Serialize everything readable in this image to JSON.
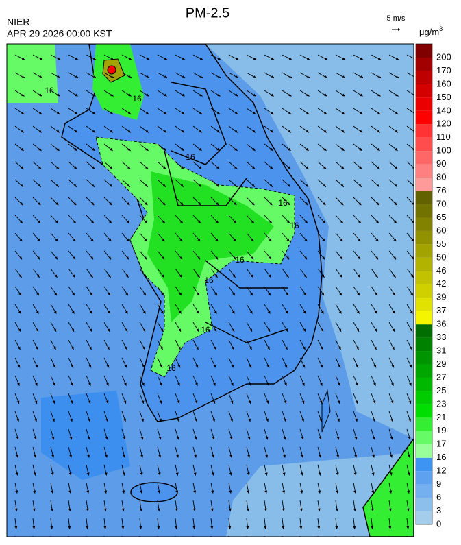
{
  "header": {
    "title": "PM-2.5",
    "agency": "NIER",
    "datetime": "APR 29 2026 00:00 KST",
    "wind_scale": "5 m/s",
    "unit": "μg/m",
    "unit_sup": "3"
  },
  "colorbar": {
    "labels": [
      0,
      3,
      6,
      9,
      12,
      16,
      17,
      19,
      21,
      23,
      25,
      27,
      29,
      31,
      33,
      36,
      37,
      39,
      42,
      46,
      50,
      55,
      60,
      65,
      70,
      76,
      80,
      90,
      100,
      110,
      120,
      140,
      150,
      160,
      170,
      200
    ],
    "colors": [
      "#a3cdea",
      "#8cbfec",
      "#74afef",
      "#5ea1f0",
      "#3e94f2",
      "#99ff99",
      "#66fa66",
      "#33ee33",
      "#00dd00",
      "#00cc00",
      "#00b800",
      "#00a600",
      "#009400",
      "#008200",
      "#006e00",
      "#f5f500",
      "#e2e200",
      "#d0d000",
      "#c2c200",
      "#b2b200",
      "#a2a200",
      "#929200",
      "#828200",
      "#727200",
      "#626200",
      "#ff9a9a",
      "#ff8080",
      "#ff6666",
      "#ff4d4d",
      "#ff3333",
      "#ff0000",
      "#ea0000",
      "#d40000",
      "#be0000",
      "#a20000",
      "#800000"
    ]
  },
  "map": {
    "contour_labels": [
      "16",
      "16",
      "16",
      "16",
      "16",
      "16",
      "16",
      "16",
      "16"
    ]
  }
}
